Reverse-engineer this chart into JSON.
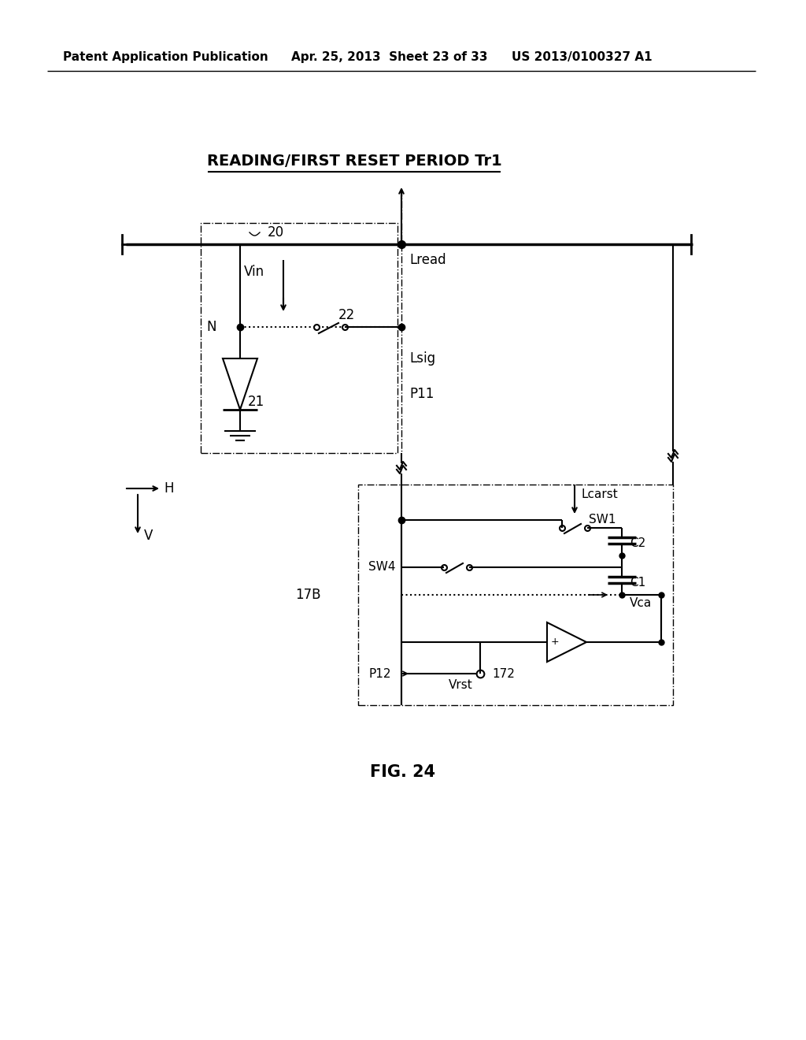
{
  "bg_color": "#ffffff",
  "header_left": "Patent Application Publication",
  "header_mid": "Apr. 25, 2013  Sheet 23 of 33",
  "header_right": "US 2013/0100327 A1",
  "title": "READING/FIRST RESET PERIOD Tr1",
  "figure_label": "FIG. 24",
  "labels": {
    "label_20": "20",
    "label_N": "N",
    "label_Vin": "Vin",
    "label_22": "22",
    "label_21": "21",
    "label_Lread": "Lread",
    "label_Lsig": "Lsig",
    "label_P11": "P11",
    "label_H": "H",
    "label_V": "V",
    "label_17B": "17B",
    "label_Lcarst": "Lcarst",
    "label_SW1": "SW1",
    "label_SW4": "SW4",
    "label_C2": "C2",
    "label_C1": "C1",
    "label_Vca": "Vca",
    "label_P12": "P12",
    "label_Vrst": "Vrst",
    "label_172": "172"
  }
}
